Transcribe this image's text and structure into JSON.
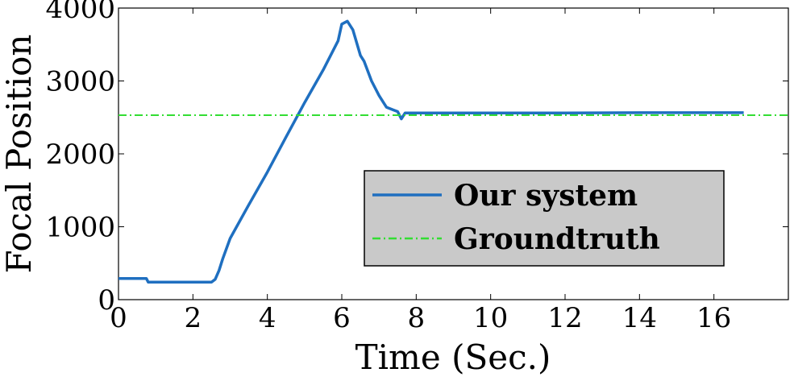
{
  "chart_data": {
    "type": "line",
    "title": "",
    "xlabel": "Time (Sec.)",
    "ylabel": "Focal Position",
    "xlim": [
      0,
      18
    ],
    "ylim": [
      0,
      4000
    ],
    "xticks": [
      "0",
      "2",
      "4",
      "6",
      "8",
      "10",
      "12",
      "14",
      "16"
    ],
    "yticks": [
      "0",
      "1000",
      "2000",
      "3000",
      "4000"
    ],
    "grid": false,
    "legend": {
      "placement": "lower-right"
    },
    "series": [
      {
        "name": "Our system",
        "color": "#1f6fc0",
        "style": "solid",
        "x": [
          0,
          0.75,
          0.8,
          1.0,
          2.0,
          2.5,
          2.6,
          2.7,
          2.8,
          3.0,
          3.5,
          4.0,
          4.5,
          5.0,
          5.5,
          5.9,
          6.0,
          6.15,
          6.3,
          6.5,
          6.6,
          6.8,
          7.0,
          7.2,
          7.4,
          7.5,
          7.6,
          7.7,
          8.0,
          10,
          12,
          14,
          16,
          16.8
        ],
        "y": [
          290,
          290,
          240,
          240,
          240,
          240,
          280,
          400,
          560,
          840,
          1300,
          1750,
          2230,
          2700,
          3150,
          3550,
          3780,
          3820,
          3700,
          3350,
          3270,
          3000,
          2800,
          2640,
          2600,
          2580,
          2480,
          2560,
          2560,
          2560,
          2560,
          2565,
          2565,
          2565
        ]
      },
      {
        "name": "Groundtruth",
        "color": "#33dd33",
        "style": "dashdot",
        "x": [
          0,
          18
        ],
        "y": [
          2530,
          2530
        ]
      }
    ]
  }
}
